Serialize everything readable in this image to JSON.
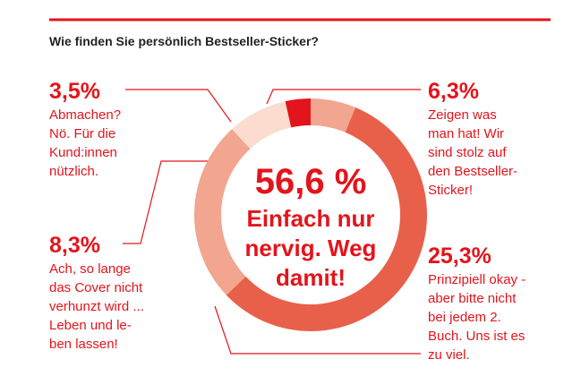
{
  "chart_data": {
    "type": "pie",
    "donut": true,
    "title": "Wie finden Sie persönlich Bestseller-Sticker?",
    "categories": [
      " Zeigen was\nman hat! Wir\nsind stolz auf\nden Bestseller-\nSticker!",
      "Einfach nur\nnervig. Weg\ndamit!",
      "Prinzipiell okay -\naber bitte nicht\nbei jedem 2.\nBuch. Uns ist es\nzu viel.",
      "Ach, so lange\ndas Cover nicht\nverhunzt wird ...\nLeben und le-\nben lassen!",
      "Abmachen?\nNö. Für die\nKund:innen\nnützlich."
    ],
    "values": [
      6.3,
      56.6,
      25.3,
      8.3,
      3.5
    ],
    "value_labels": [
      "6,3%",
      "56,6 %",
      "25,3%",
      "8,3%",
      "3,5%"
    ],
    "colors": [
      "#f2a58f",
      "#e8604a",
      "#f2a58f",
      "#fbdccf",
      "#e3141b"
    ]
  }
}
